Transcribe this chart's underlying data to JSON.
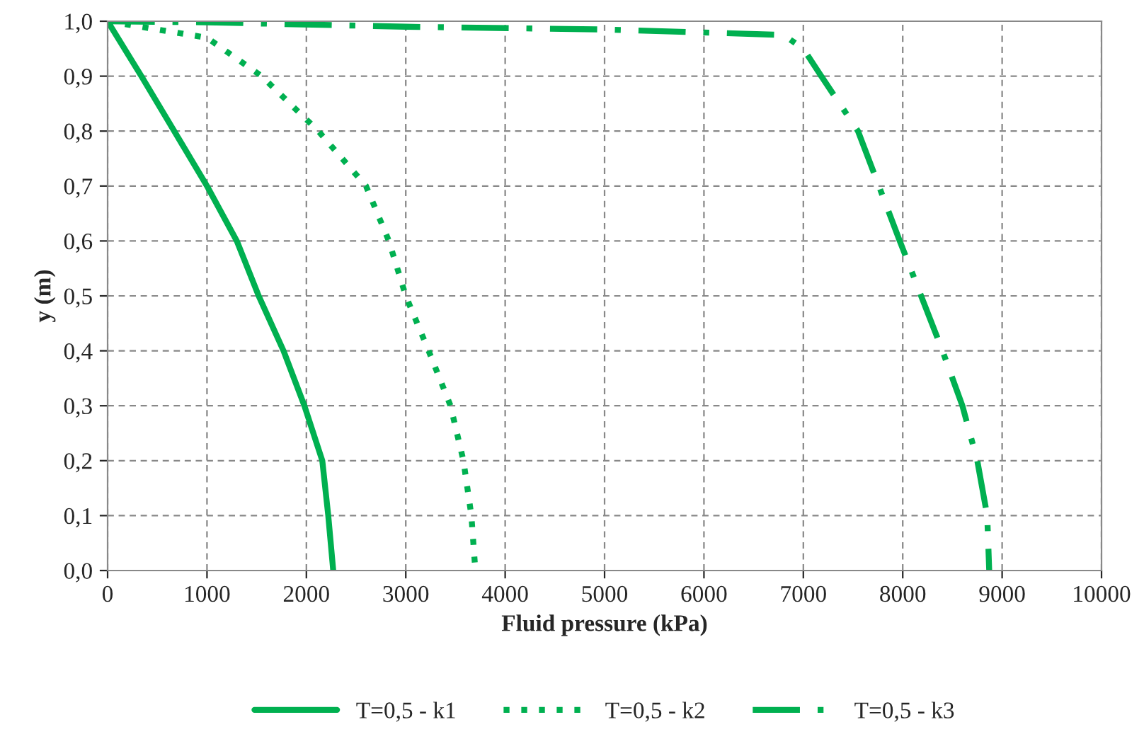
{
  "chart_data": {
    "type": "line",
    "xlabel": "Fluid pressure (kPa)",
    "ylabel": "y (m)",
    "xlim": [
      0,
      10000
    ],
    "xticks": [
      0,
      1000,
      2000,
      3000,
      4000,
      5000,
      6000,
      7000,
      8000,
      9000,
      10000
    ],
    "ylim": [
      0,
      1.0
    ],
    "yticks": [
      {
        "value": 0,
        "label": "0,0"
      },
      {
        "value": 0.1,
        "label": "0,1"
      },
      {
        "value": 0.2,
        "label": "0,2"
      },
      {
        "value": 0.3,
        "label": "0,3"
      },
      {
        "value": 0.4,
        "label": "0,4"
      },
      {
        "value": 0.5,
        "label": "0,5"
      },
      {
        "value": 0.6,
        "label": "0,6"
      },
      {
        "value": 0.7,
        "label": "0,7"
      },
      {
        "value": 0.8,
        "label": "0,8"
      },
      {
        "value": 0.9,
        "label": "0,9"
      },
      {
        "value": 1.0,
        "label": "1,0"
      }
    ],
    "grid": true,
    "legend": "bottom",
    "marker": "none",
    "series": [
      {
        "name": "T=0,5 - k1",
        "color": "#00b050",
        "line_style": "solid",
        "x": [
          0,
          340,
          670,
          1000,
          1300,
          1520,
          1770,
          1980,
          2160,
          2220,
          2270
        ],
        "values": [
          1.0,
          0.9,
          0.8,
          0.7,
          0.6,
          0.5,
          0.4,
          0.3,
          0.2,
          0.1,
          0.0
        ]
      },
      {
        "name": "T=0,5 - k2",
        "color": "#00b050",
        "line_style": "dotted",
        "x": [
          0,
          1000,
          1550,
          2120,
          2600,
          2830,
          3000,
          3230,
          3450,
          3580,
          3660,
          3700
        ],
        "values": [
          1.0,
          0.97,
          0.9,
          0.8,
          0.7,
          0.6,
          0.5,
          0.4,
          0.3,
          0.2,
          0.1,
          0.0
        ]
      },
      {
        "name": "T=0,5 - k3",
        "color": "#00b050",
        "line_style": "dashdot",
        "x": [
          0,
          1000,
          3000,
          5000,
          6800,
          7000,
          7180,
          7550,
          7970,
          8400,
          8600,
          8750,
          8850,
          8870
        ],
        "values": [
          1.0,
          0.998,
          0.99,
          0.985,
          0.975,
          0.95,
          0.9,
          0.8,
          0.6,
          0.4,
          0.3,
          0.2,
          0.1,
          0.0
        ]
      }
    ]
  }
}
